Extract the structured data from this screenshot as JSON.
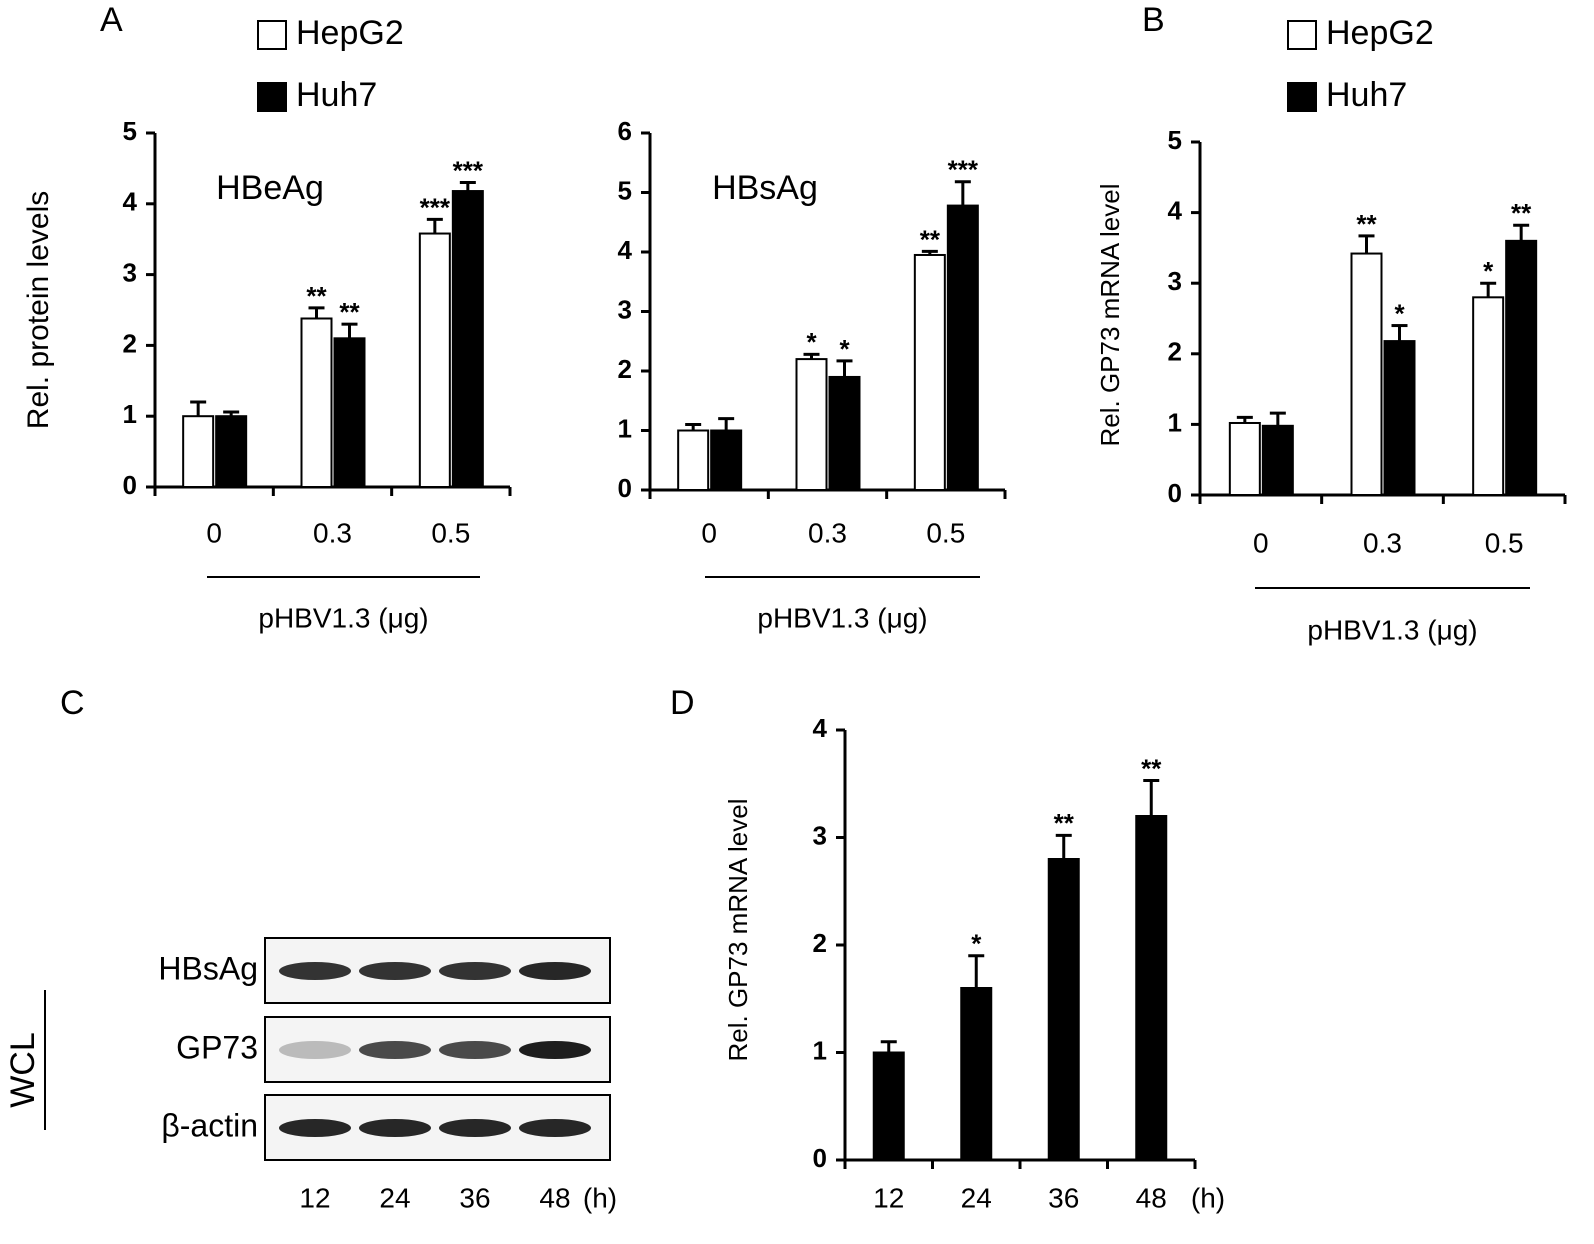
{
  "chart_data": [
    {
      "type": "bar",
      "panel": "A",
      "title": "HBeAg",
      "ylabel": "Rel. protein levels",
      "xlabel": "pHBV1.3 (μg)",
      "categories": [
        "0",
        "0.3",
        "0.5"
      ],
      "ylim": [
        0,
        5
      ],
      "yticks": [
        0,
        1,
        2,
        3,
        4,
        5
      ],
      "series": [
        {
          "name": "HepG2",
          "color": "#ffffff",
          "values": [
            1.0,
            2.38,
            3.58
          ],
          "errors": [
            0.2,
            0.15,
            0.2
          ],
          "annotations": [
            null,
            "**",
            "***"
          ]
        },
        {
          "name": "Huh7",
          "color": "#000000",
          "values": [
            1.0,
            2.1,
            4.18
          ],
          "errors": [
            0.06,
            0.2,
            0.12
          ],
          "annotations": [
            null,
            "**",
            "***"
          ]
        }
      ]
    },
    {
      "type": "bar",
      "title": "HBsAg",
      "xlabel": "pHBV1.3 (μg)",
      "categories": [
        "0",
        "0.3",
        "0.5"
      ],
      "ylim": [
        0,
        6
      ],
      "yticks": [
        0,
        1,
        2,
        3,
        4,
        5,
        6
      ],
      "series": [
        {
          "color": "#ffffff",
          "values": [
            1.0,
            2.2,
            3.95
          ],
          "errors": [
            0.1,
            0.08,
            0.06
          ],
          "annotations": [
            null,
            "*",
            "**"
          ]
        },
        {
          "color": "#000000",
          "values": [
            1.0,
            1.9,
            4.78
          ],
          "errors": [
            0.2,
            0.27,
            0.4
          ],
          "annotations": [
            null,
            "*",
            "***"
          ]
        }
      ]
    },
    {
      "type": "bar",
      "panel": "B",
      "ylabel": "Rel. GP73 mRNA level",
      "xlabel": "pHBV1.3 (μg)",
      "categories": [
        "0",
        "0.3",
        "0.5"
      ],
      "ylim": [
        0,
        5
      ],
      "yticks": [
        0,
        1,
        2,
        3,
        4,
        5
      ],
      "series": [
        {
          "name": "HepG2",
          "color": "#ffffff",
          "values": [
            1.02,
            3.42,
            2.8
          ],
          "errors": [
            0.08,
            0.25,
            0.2
          ],
          "annotations": [
            null,
            "**",
            "*"
          ]
        },
        {
          "name": "Huh7",
          "color": "#000000",
          "values": [
            0.98,
            2.18,
            3.6
          ],
          "errors": [
            0.18,
            0.22,
            0.22
          ],
          "annotations": [
            null,
            "*",
            "**"
          ]
        }
      ]
    },
    {
      "type": "bar",
      "panel": "D",
      "ylabel": "Rel. GP73 mRNA level",
      "xlabel": "(h)",
      "categories": [
        "12",
        "24",
        "36",
        "48"
      ],
      "ylim": [
        0,
        4
      ],
      "yticks": [
        0,
        1,
        2,
        3,
        4
      ],
      "series": [
        {
          "color": "#000000",
          "values": [
            1.0,
            1.6,
            2.8,
            3.2
          ],
          "errors": [
            0.1,
            0.3,
            0.22,
            0.33
          ],
          "annotations": [
            null,
            "*",
            "**",
            "**"
          ]
        }
      ]
    }
  ],
  "blot": {
    "panel": "C",
    "side_label": "WCL",
    "rows": [
      "HBsAg",
      "GP73",
      "β-actin"
    ],
    "lanes": [
      "12",
      "24",
      "36",
      "48"
    ],
    "unit": "(h)"
  }
}
